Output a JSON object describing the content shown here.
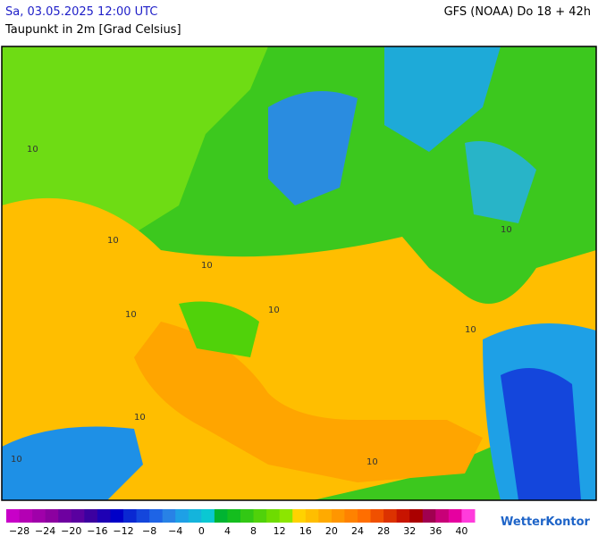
{
  "header": {
    "datetime": "Sa, 03.05.2025 12:00 UTC",
    "parameter": "Taupunkt in 2m [Grad Celsius]",
    "model": "GFS (NOAA) Do 18 + 42h"
  },
  "map": {
    "contour_labels": [
      "10",
      "10",
      "10",
      "10",
      "10",
      "10",
      "10",
      "10",
      "10",
      "10"
    ]
  },
  "legend": {
    "labels": [
      "−28",
      "−24",
      "−20",
      "−16",
      "−12",
      "−8",
      "−4",
      "0",
      "4",
      "8",
      "12",
      "16",
      "20",
      "24",
      "28",
      "32",
      "36",
      "40"
    ],
    "colors": [
      "#c800c8",
      "#b400b4",
      "#a000aa",
      "#8c00a0",
      "#6e00a0",
      "#5a00a0",
      "#3c00a0",
      "#1e00b4",
      "#0000c8",
      "#0a28d2",
      "#1446dc",
      "#1e64e6",
      "#2882e6",
      "#1ea0e6",
      "#14b4dc",
      "#0ac8d2",
      "#00b432",
      "#14be1e",
      "#32c814",
      "#50d20a",
      "#6edc00",
      "#8ce600",
      "#ffd200",
      "#ffbe00",
      "#ffaa00",
      "#ff9600",
      "#ff8200",
      "#ff6e00",
      "#f05000",
      "#dc3200",
      "#c81400",
      "#aa0000",
      "#a00050",
      "#c80078",
      "#e600a0",
      "#ff3cdc"
    ]
  },
  "logo": "WetterKontor"
}
